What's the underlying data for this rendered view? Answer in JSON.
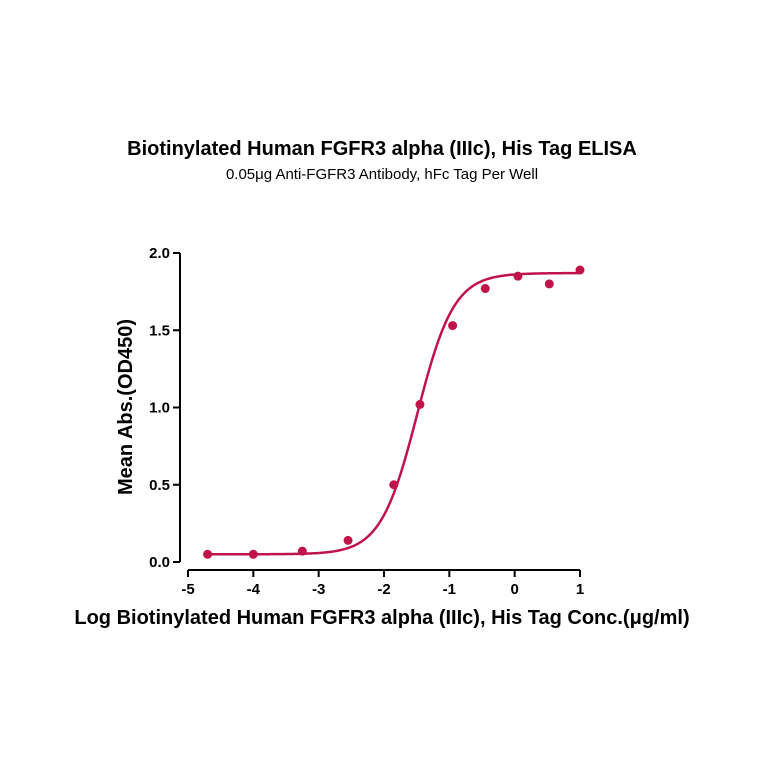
{
  "chart_data": {
    "type": "scatter",
    "title": "Biotinylated Human FGFR3 alpha (IIIc), His Tag ELISA",
    "subtitle": "0.05μg  Anti-FGFR3 Antibody, hFc Tag Per Well",
    "xlabel": "Log Biotinylated Human FGFR3 alpha (IIIc), His Tag Conc.(μg/ml)",
    "ylabel": "Mean Abs.(OD450)",
    "xlim": [
      -5,
      1
    ],
    "ylim": [
      0,
      2
    ],
    "x_ticks": [
      "-5",
      "-4",
      "-3",
      "-2",
      "-1",
      "0",
      "1"
    ],
    "y_ticks": [
      "0.0",
      "0.5",
      "1.0",
      "1.5",
      "2.0"
    ],
    "grid": false,
    "series": [
      {
        "points": [
          {
            "x": -4.7,
            "y": 0.05
          },
          {
            "x": -4.0,
            "y": 0.05
          },
          {
            "x": -3.25,
            "y": 0.07
          },
          {
            "x": -2.55,
            "y": 0.14
          },
          {
            "x": -1.85,
            "y": 0.5
          },
          {
            "x": -1.45,
            "y": 1.02
          },
          {
            "x": -0.95,
            "y": 1.53
          },
          {
            "x": -0.45,
            "y": 1.77
          },
          {
            "x": 0.05,
            "y": 1.85
          },
          {
            "x": 0.53,
            "y": 1.8
          },
          {
            "x": 1.0,
            "y": 1.89
          }
        ],
        "fit": {
          "model": "4PL",
          "bottom": 0.05,
          "top": 1.87,
          "logEC50": -1.49,
          "hill": 1.55
        },
        "color": "#C0134A"
      }
    ]
  }
}
